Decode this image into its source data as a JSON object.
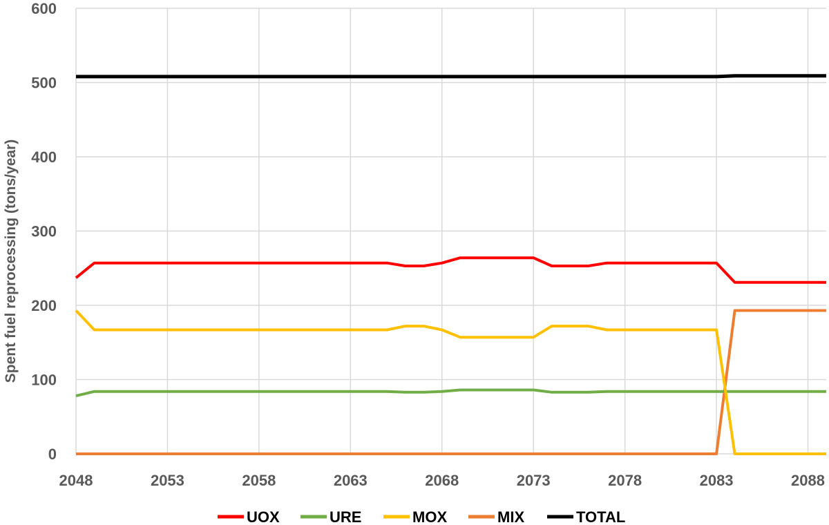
{
  "chart_data": {
    "type": "line",
    "title": "",
    "xlabel": "",
    "ylabel": "Spent fuel reprocessing (tons/year)",
    "xlim": [
      2048,
      2089
    ],
    "ylim": [
      0,
      600
    ],
    "x_ticks": [
      "2048",
      "2053",
      "2058",
      "2063",
      "2068",
      "2073",
      "2078",
      "2083",
      "2088"
    ],
    "y_ticks": [
      "0",
      "100",
      "200",
      "300",
      "400",
      "500",
      "600"
    ],
    "grid": "vertical and horizontal",
    "legend": "bottom",
    "x": [
      2048,
      2049,
      2050,
      2051,
      2052,
      2053,
      2054,
      2055,
      2056,
      2057,
      2058,
      2059,
      2060,
      2061,
      2062,
      2063,
      2064,
      2065,
      2066,
      2067,
      2068,
      2069,
      2070,
      2071,
      2072,
      2073,
      2074,
      2075,
      2076,
      2077,
      2078,
      2079,
      2080,
      2081,
      2082,
      2083,
      2084,
      2085,
      2086,
      2087,
      2088,
      2089
    ],
    "series": [
      {
        "name": "UOX",
        "color": "#ff0000",
        "values": [
          237,
          257,
          257,
          257,
          257,
          257,
          257,
          257,
          257,
          257,
          257,
          257,
          257,
          257,
          257,
          257,
          257,
          257,
          253,
          253,
          257,
          264,
          264,
          264,
          264,
          264,
          253,
          253,
          253,
          257,
          257,
          257,
          257,
          257,
          257,
          257,
          231,
          231,
          231,
          231,
          231,
          231
        ]
      },
      {
        "name": "URE",
        "color": "#70ad47",
        "values": [
          78,
          84,
          84,
          84,
          84,
          84,
          84,
          84,
          84,
          84,
          84,
          84,
          84,
          84,
          84,
          84,
          84,
          84,
          83,
          83,
          84,
          86,
          86,
          86,
          86,
          86,
          83,
          83,
          83,
          84,
          84,
          84,
          84,
          84,
          84,
          84,
          84,
          84,
          84,
          84,
          84,
          84
        ]
      },
      {
        "name": "MOX",
        "color": "#ffc000",
        "values": [
          193,
          167,
          167,
          167,
          167,
          167,
          167,
          167,
          167,
          167,
          167,
          167,
          167,
          167,
          167,
          167,
          167,
          167,
          172,
          172,
          167,
          157,
          157,
          157,
          157,
          157,
          172,
          172,
          172,
          167,
          167,
          167,
          167,
          167,
          167,
          167,
          0,
          0,
          0,
          0,
          0,
          0
        ]
      },
      {
        "name": "MIX",
        "color": "#ed7d31",
        "values": [
          0,
          0,
          0,
          0,
          0,
          0,
          0,
          0,
          0,
          0,
          0,
          0,
          0,
          0,
          0,
          0,
          0,
          0,
          0,
          0,
          0,
          0,
          0,
          0,
          0,
          0,
          0,
          0,
          0,
          0,
          0,
          0,
          0,
          0,
          0,
          0,
          193,
          193,
          193,
          193,
          193,
          193
        ]
      },
      {
        "name": "TOTAL",
        "color": "#000000",
        "values": [
          508,
          508,
          508,
          508,
          508,
          508,
          508,
          508,
          508,
          508,
          508,
          508,
          508,
          508,
          508,
          508,
          508,
          508,
          508,
          508,
          508,
          508,
          508,
          508,
          508,
          508,
          508,
          508,
          508,
          508,
          508,
          508,
          508,
          508,
          508,
          508,
          509,
          509,
          509,
          509,
          509,
          509
        ]
      }
    ]
  }
}
